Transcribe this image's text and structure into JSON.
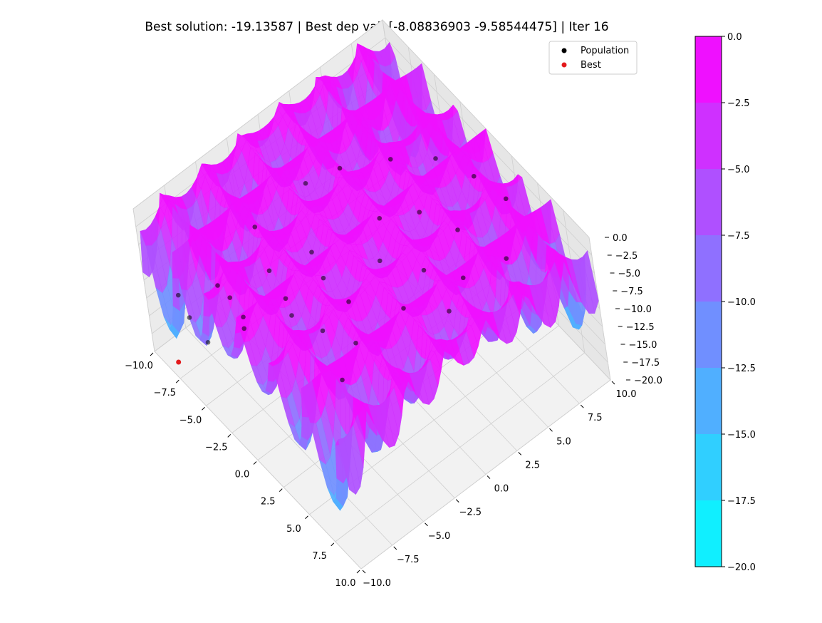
{
  "chart_data": {
    "type": "surface3d",
    "title": "Best solution: -19.13587 | Best dep val: [-8.08836903 -9.58544475] | Iter 16",
    "xlabel": "",
    "ylabel": "",
    "zlabel": "",
    "x_range": [
      -10,
      10
    ],
    "y_range": [
      -10,
      10
    ],
    "z_range": [
      -20,
      0
    ],
    "x_ticks": [
      "−10.0",
      "−7.5",
      "−5.0",
      "−2.5",
      "0.0",
      "2.5",
      "5.0",
      "7.5",
      "10.0"
    ],
    "y_ticks": [
      "−10.0",
      "−7.5",
      "−5.0",
      "−2.5",
      "0.0",
      "2.5",
      "5.0",
      "7.5",
      "10.0"
    ],
    "z_ticks": [
      "0.0",
      "−2.5",
      "−5.0",
      "−7.5",
      "−10.0",
      "−12.5",
      "−15.0",
      "−17.5",
      "−20.0"
    ],
    "grid": true,
    "colormap": "cool",
    "colormap_low": "#00FFFF",
    "colormap_high": "#FF00FF",
    "colorbar": {
      "ticks": [
        "0.0",
        "−2.5",
        "−5.0",
        "−7.5",
        "−10.0",
        "−12.5",
        "−15.0",
        "−17.5",
        "−20.0"
      ],
      "levels": [
        0,
        -2.5,
        -5,
        -7.5,
        -10,
        -12.5,
        -15,
        -17.5,
        -20
      ]
    },
    "legend": {
      "placement": "top-right",
      "entries": [
        {
          "label": "Population",
          "color": "#000000"
        },
        {
          "label": "Best",
          "color": "#e31a1c"
        }
      ]
    },
    "series": [
      {
        "name": "Population",
        "type": "scatter",
        "points": [
          [
            -9.5,
            -8.0,
            -14.0
          ],
          [
            -8.0,
            -6.0,
            -13.0
          ],
          [
            -7.0,
            -9.0,
            -12.0
          ],
          [
            -6.0,
            -6.5,
            -11.0
          ],
          [
            -5.0,
            -4.0,
            -9.0
          ],
          [
            -4.0,
            -7.0,
            -10.0
          ],
          [
            -3.0,
            -2.0,
            -6.0
          ],
          [
            -2.0,
            -5.0,
            -7.0
          ],
          [
            -1.0,
            2.0,
            -3.5
          ],
          [
            0.5,
            4.0,
            -3.0
          ],
          [
            1.5,
            0.0,
            -3.0
          ],
          [
            2.0,
            -3.0,
            -4.0
          ],
          [
            3.0,
            5.0,
            -3.0
          ],
          [
            4.0,
            1.5,
            -2.5
          ],
          [
            5.0,
            -1.0,
            -3.0
          ],
          [
            6.0,
            3.0,
            -2.5
          ],
          [
            -5.5,
            2.5,
            -4.0
          ],
          [
            -6.5,
            0.5,
            -5.0
          ],
          [
            -3.5,
            5.0,
            -3.0
          ],
          [
            -1.5,
            7.0,
            -2.5
          ],
          [
            1.0,
            8.0,
            -2.5
          ],
          [
            3.5,
            8.5,
            -2.5
          ],
          [
            0.0,
            -6.0,
            -5.0
          ],
          [
            2.5,
            -5.5,
            -4.0
          ],
          [
            -2.5,
            -8.0,
            -8.0
          ],
          [
            6.5,
            6.0,
            -3.0
          ],
          [
            7.0,
            1.0,
            -3.0
          ],
          [
            -7.5,
            -3.0,
            -8.0
          ],
          [
            -4.5,
            -9.5,
            -11.0
          ],
          [
            4.5,
            -4.5,
            -4.0
          ],
          [
            -0.5,
            -3.0,
            -4.5
          ],
          [
            5.5,
            -6.5,
            -5.0
          ]
        ]
      },
      {
        "name": "Best",
        "type": "scatter",
        "points": [
          [
            -8.08836903,
            -9.58544475,
            -19.13587
          ]
        ]
      }
    ]
  }
}
